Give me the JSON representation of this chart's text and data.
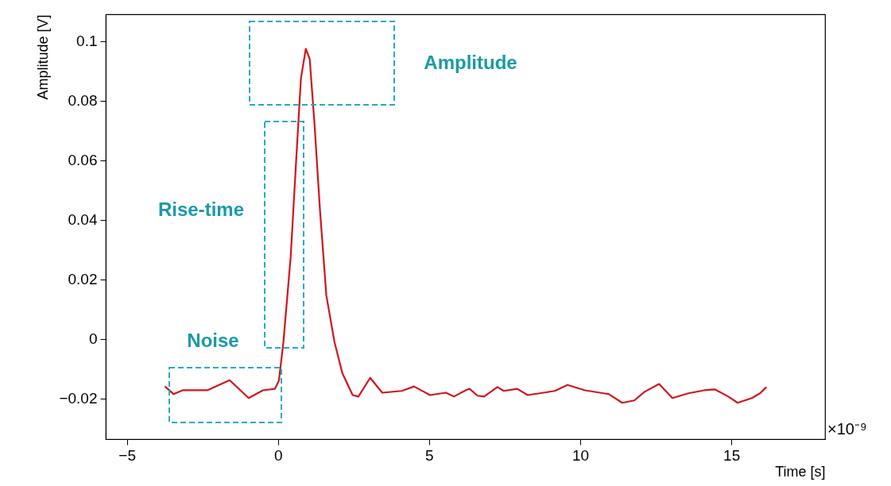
{
  "chart_data": {
    "type": "line",
    "xlabel": "Time [s]",
    "ylabel": "Amplitude [V]",
    "xlim": [
      -5.7,
      18.1
    ],
    "xticks": [
      -5,
      0,
      5,
      10,
      15
    ],
    "ylim": [
      -0.0336,
      0.109
    ],
    "yticks": [
      -0.02,
      0,
      0.02,
      0.04,
      0.06,
      0.08,
      0.1
    ],
    "grid": false,
    "series": [
      {
        "color": "#d0161c",
        "x": [
          -3.74,
          -3.45,
          -3.16,
          -2.34,
          -1.6,
          -0.97,
          -0.5,
          -0.1,
          0.03,
          0.18,
          0.42,
          0.61,
          0.76,
          0.92,
          1.05,
          1.21,
          1.39,
          1.6,
          1.87,
          2.13,
          2.47,
          2.66,
          3.05,
          3.45,
          4.1,
          4.5,
          5.03,
          5.55,
          5.82,
          6.21,
          6.34,
          6.6,
          6.82,
          7.26,
          7.47,
          7.92,
          8.26,
          8.79,
          9.16,
          9.58,
          10.16,
          10.95,
          11.39,
          11.79,
          12.13,
          12.61,
          13.05,
          13.58,
          14.1,
          14.45,
          14.9,
          15.21,
          15.68,
          15.95,
          16.16
        ],
        "values": [
          -0.0159,
          -0.0185,
          -0.0172,
          -0.0172,
          -0.0138,
          -0.0198,
          -0.0172,
          -0.0167,
          -0.014,
          -0.001,
          0.0276,
          0.0615,
          0.0875,
          0.0974,
          0.094,
          0.0719,
          0.0432,
          0.0146,
          -0.001,
          -0.0115,
          -0.0188,
          -0.0193,
          -0.013,
          -0.018,
          -0.0174,
          -0.0159,
          -0.0188,
          -0.018,
          -0.0193,
          -0.0172,
          -0.0167,
          -0.019,
          -0.0193,
          -0.0161,
          -0.0174,
          -0.0167,
          -0.0188,
          -0.018,
          -0.0174,
          -0.0154,
          -0.0172,
          -0.0185,
          -0.0214,
          -0.0206,
          -0.0177,
          -0.0151,
          -0.0198,
          -0.0182,
          -0.0172,
          -0.0169,
          -0.0193,
          -0.0214,
          -0.0198,
          -0.0182,
          -0.0161
        ]
      }
    ],
    "annotations": [
      "Amplitude",
      "Rise-time",
      "Noise",
      "×10⁻⁹"
    ]
  }
}
